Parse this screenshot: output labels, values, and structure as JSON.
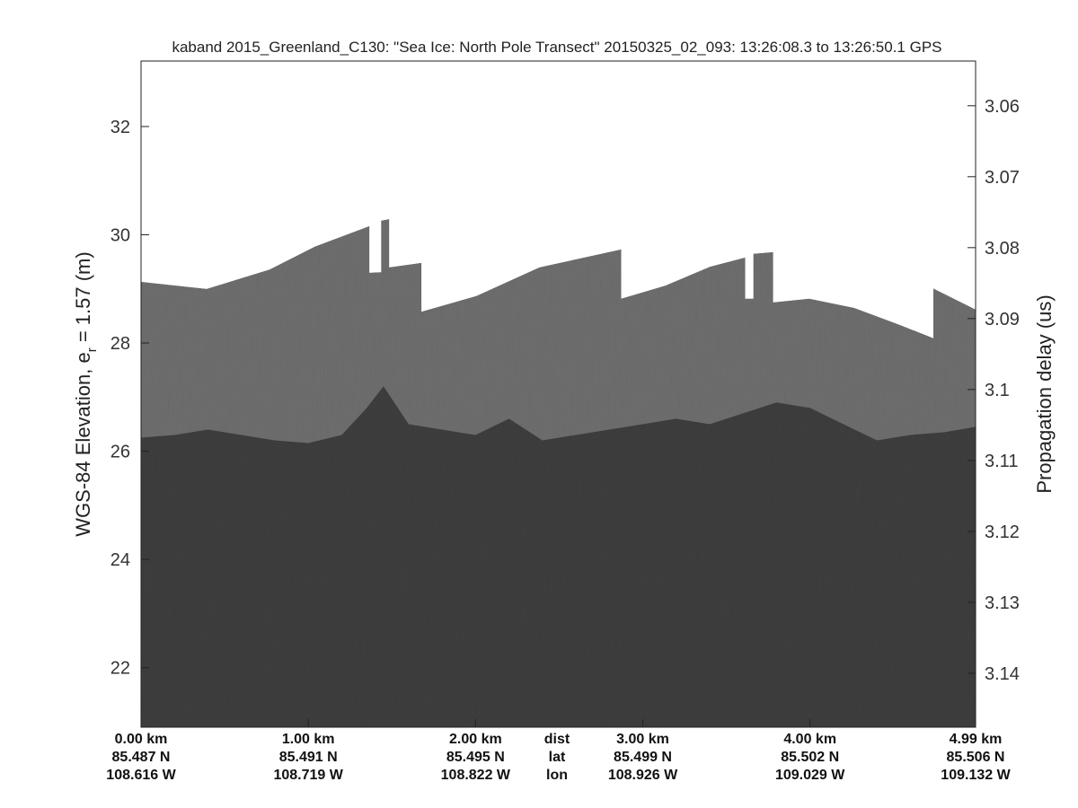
{
  "chart_data": {
    "type": "echogram",
    "title": "kaband 2015_Greenland_C130: \"Sea Ice: North Pole Transect\"  20150325_02_093: 13:26:08.3 to 13:26:50.1 GPS",
    "ylabel": {
      "main": "WGS-84 Elevation, e",
      "sub": "r",
      "rest": " = 1.57 (m)"
    },
    "y2label": "Propagation delay (us)",
    "xlim": [
      0,
      4.99
    ],
    "xticks": [
      {
        "value": 0,
        "label": "0.00 km"
      },
      {
        "value": 1,
        "label": "1.00 km"
      },
      {
        "value": 2,
        "label": "2.00 km"
      },
      {
        "value": 3,
        "label": "3.00 km"
      },
      {
        "value": 4,
        "label": "4.00 km"
      },
      {
        "value": 4.99,
        "label": "4.99 km"
      }
    ],
    "lat_labels": [
      "85.487 N",
      "85.491 N",
      "85.495 N",
      "85.499 N",
      "85.502 N",
      "85.506 N"
    ],
    "lon_labels": [
      "108.616 W",
      "108.719 W",
      "108.822 W",
      "108.926 W",
      "109.029 W",
      "109.132 W"
    ],
    "row_labels": [
      "dist",
      "lat",
      "lon"
    ],
    "ylim": [
      20.9,
      33.21
    ],
    "yticks": [
      22,
      24,
      26,
      28,
      30,
      32
    ],
    "y2lim": [
      3.1476,
      3.0537
    ],
    "y2ticks": [
      3.06,
      3.07,
      3.08,
      3.09,
      3.1,
      3.11,
      3.12,
      3.13,
      3.14
    ],
    "surface": {
      "color": "#6d6d6d",
      "x": [
        0,
        0.392,
        0.769,
        1.038,
        1.366,
        1.366,
        1.435,
        1.435,
        1.484,
        1.484,
        1.677,
        1.677,
        2.005,
        2.382,
        2.651,
        2.871,
        2.871,
        3.134,
        3.403,
        3.613,
        3.613,
        3.661,
        3.661,
        3.78,
        3.78,
        3.995,
        4.263,
        4.532,
        4.737,
        4.737,
        4.99
      ],
      "values": [
        29.13,
        29.0,
        29.36,
        29.78,
        30.16,
        29.3,
        29.31,
        30.26,
        30.29,
        29.4,
        29.48,
        28.58,
        28.87,
        29.4,
        29.58,
        29.73,
        28.82,
        29.06,
        29.41,
        29.58,
        28.82,
        28.82,
        29.65,
        29.68,
        28.75,
        28.82,
        28.65,
        28.34,
        28.09,
        29.01,
        28.62
      ]
    },
    "layer": {
      "color": "#3d3d3d",
      "x": [
        0,
        0.2,
        0.4,
        0.6,
        0.8,
        1.0,
        1.2,
        1.35,
        1.45,
        1.6,
        1.8,
        2.0,
        2.2,
        2.4,
        2.6,
        2.8,
        3.0,
        3.2,
        3.4,
        3.6,
        3.8,
        4.0,
        4.2,
        4.4,
        4.6,
        4.8,
        4.99
      ],
      "values": [
        26.25,
        26.3,
        26.4,
        26.3,
        26.2,
        26.15,
        26.3,
        26.8,
        27.2,
        26.5,
        26.4,
        26.3,
        26.6,
        26.2,
        26.3,
        26.4,
        26.5,
        26.6,
        26.5,
        26.7,
        26.9,
        26.8,
        26.5,
        26.2,
        26.3,
        26.35,
        26.45
      ]
    }
  }
}
